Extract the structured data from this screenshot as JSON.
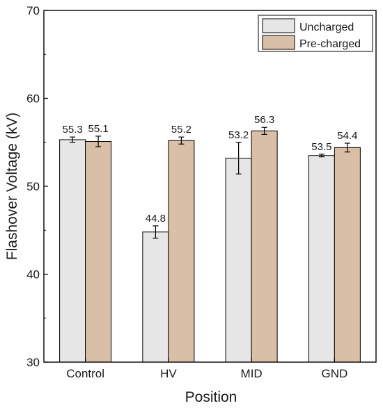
{
  "chart_data": {
    "type": "bar",
    "title": "",
    "xlabel": "Position",
    "ylabel": "Flashover Voltage (kV)",
    "ylim": [
      30,
      70
    ],
    "yticks": [
      30,
      40,
      50,
      60,
      70
    ],
    "grid": false,
    "legend_position": "top-right",
    "categories": [
      "Control",
      "HV",
      "MID",
      "GND"
    ],
    "series": [
      {
        "name": "Uncharged",
        "color": "#e6e6e6",
        "values": [
          55.3,
          44.8,
          53.2,
          53.5
        ],
        "errors": [
          0.3,
          0.7,
          1.8,
          0.15
        ],
        "labels": [
          "55.3",
          "44.8",
          "53.2",
          "53.5"
        ]
      },
      {
        "name": "Pre-charged",
        "color": "#d9bfa6",
        "values": [
          55.1,
          55.2,
          56.3,
          54.4
        ],
        "errors": [
          0.6,
          0.4,
          0.4,
          0.5
        ],
        "labels": [
          "55.1",
          "55.2",
          "56.3",
          "54.4"
        ]
      }
    ]
  }
}
